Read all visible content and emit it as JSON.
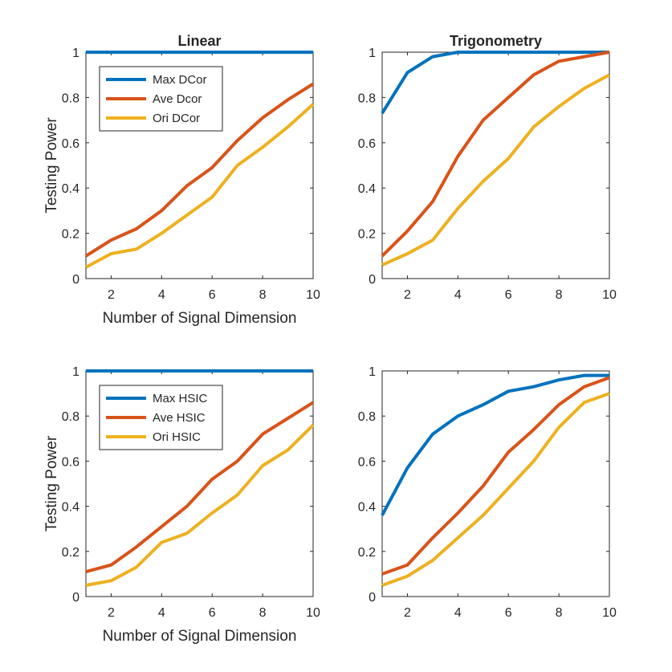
{
  "colors": {
    "max": "#0072BD",
    "ave": "#D95319",
    "ori": "#EDB120"
  },
  "chart_data": [
    {
      "type": "line",
      "title": "Linear",
      "xlabel": "Number of Signal Dimension",
      "ylabel": "Testing Power",
      "xlim": [
        1,
        10
      ],
      "ylim": [
        0,
        1
      ],
      "xticks": [
        "2",
        "4",
        "6",
        "8",
        "10"
      ],
      "yticks": [
        "0",
        "0.2",
        "0.4",
        "0.6",
        "0.8",
        "1"
      ],
      "legend": "top-left",
      "x": [
        1,
        2,
        3,
        4,
        5,
        6,
        7,
        8,
        9,
        10
      ],
      "series": [
        {
          "name": "Max DCor",
          "color": "#0072BD",
          "values": [
            1,
            1,
            1,
            1,
            1,
            1,
            1,
            1,
            1,
            1
          ]
        },
        {
          "name": "Ave Dcor",
          "color": "#D95319",
          "values": [
            0.1,
            0.17,
            0.22,
            0.3,
            0.41,
            0.49,
            0.61,
            0.71,
            0.79,
            0.86
          ]
        },
        {
          "name": "Ori DCor",
          "color": "#EDB120",
          "values": [
            0.05,
            0.11,
            0.13,
            0.2,
            0.28,
            0.36,
            0.5,
            0.58,
            0.67,
            0.77
          ]
        }
      ]
    },
    {
      "type": "line",
      "title": "Trigonometry",
      "xlabel": "",
      "ylabel": "",
      "xlim": [
        1,
        10
      ],
      "ylim": [
        0,
        1
      ],
      "xticks": [
        "2",
        "4",
        "6",
        "8",
        "10"
      ],
      "yticks": [
        "0",
        "0.2",
        "0.4",
        "0.6",
        "0.8",
        "1"
      ],
      "legend": "none",
      "x": [
        1,
        2,
        3,
        4,
        5,
        6,
        7,
        8,
        9,
        10
      ],
      "series": [
        {
          "name": "Max DCor",
          "color": "#0072BD",
          "values": [
            0.73,
            0.91,
            0.98,
            1.0,
            1.0,
            1.0,
            1.0,
            1.0,
            1.0,
            1.0
          ]
        },
        {
          "name": "Ave Dcor",
          "color": "#D95319",
          "values": [
            0.1,
            0.21,
            0.34,
            0.54,
            0.7,
            0.8,
            0.9,
            0.96,
            0.98,
            1.0
          ]
        },
        {
          "name": "Ori DCor",
          "color": "#EDB120",
          "values": [
            0.06,
            0.11,
            0.17,
            0.31,
            0.43,
            0.53,
            0.67,
            0.76,
            0.84,
            0.9
          ]
        }
      ]
    },
    {
      "type": "line",
      "title": "",
      "xlabel": "Number of Signal Dimension",
      "ylabel": "Testing Power",
      "xlim": [
        1,
        10
      ],
      "ylim": [
        0,
        1
      ],
      "xticks": [
        "2",
        "4",
        "6",
        "8",
        "10"
      ],
      "yticks": [
        "0",
        "0.2",
        "0.4",
        "0.6",
        "0.8",
        "1"
      ],
      "legend": "top-left",
      "x": [
        1,
        2,
        3,
        4,
        5,
        6,
        7,
        8,
        9,
        10
      ],
      "series": [
        {
          "name": "Max HSIC",
          "color": "#0072BD",
          "values": [
            1,
            1,
            1,
            1,
            1,
            1,
            1,
            1,
            1,
            1
          ]
        },
        {
          "name": "Ave HSIC",
          "color": "#D95319",
          "values": [
            0.11,
            0.14,
            0.22,
            0.31,
            0.4,
            0.52,
            0.6,
            0.72,
            0.79,
            0.86
          ]
        },
        {
          "name": "Ori HSIC",
          "color": "#EDB120",
          "values": [
            0.05,
            0.07,
            0.13,
            0.24,
            0.28,
            0.37,
            0.45,
            0.58,
            0.65,
            0.76
          ]
        }
      ]
    },
    {
      "type": "line",
      "title": "",
      "xlabel": "",
      "ylabel": "",
      "xlim": [
        1,
        10
      ],
      "ylim": [
        0,
        1
      ],
      "xticks": [
        "2",
        "4",
        "6",
        "8",
        "10"
      ],
      "yticks": [
        "0",
        "0.2",
        "0.4",
        "0.6",
        "0.8",
        "1"
      ],
      "legend": "none",
      "x": [
        1,
        2,
        3,
        4,
        5,
        6,
        7,
        8,
        9,
        10
      ],
      "series": [
        {
          "name": "Max HSIC",
          "color": "#0072BD",
          "values": [
            0.36,
            0.57,
            0.72,
            0.8,
            0.85,
            0.91,
            0.93,
            0.96,
            0.98,
            0.98
          ]
        },
        {
          "name": "Ave HSIC",
          "color": "#D95319",
          "values": [
            0.1,
            0.14,
            0.26,
            0.37,
            0.49,
            0.64,
            0.74,
            0.85,
            0.93,
            0.97
          ]
        },
        {
          "name": "Ori HSIC",
          "color": "#EDB120",
          "values": [
            0.05,
            0.09,
            0.16,
            0.26,
            0.36,
            0.48,
            0.6,
            0.75,
            0.86,
            0.9
          ]
        }
      ]
    }
  ]
}
